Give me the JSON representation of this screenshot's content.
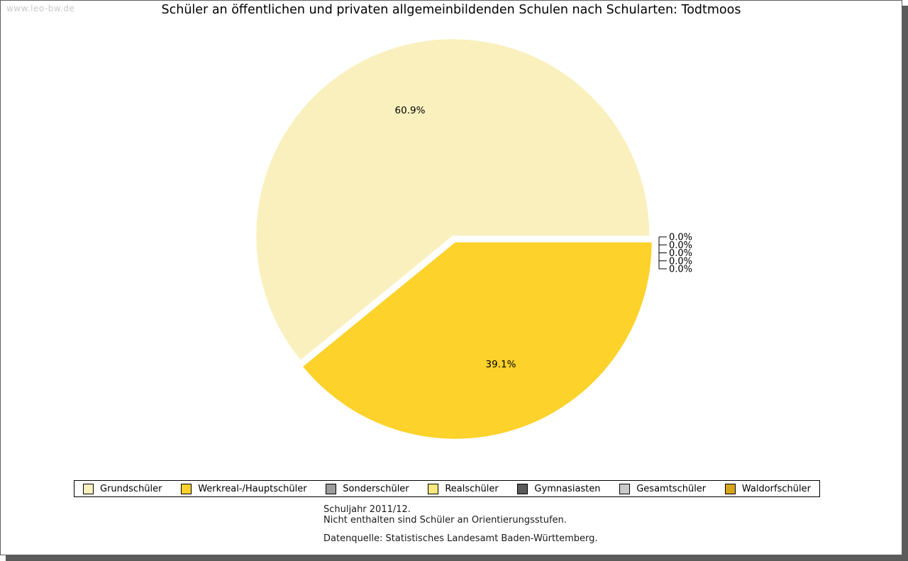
{
  "watermark": "www.leo-bw.de",
  "chart_data": {
    "type": "pie",
    "title": "Schüler an öffentlichen und privaten allgemeinbildenden Schulen nach Schularten: Todtmoos",
    "unit": "%",
    "legend_position": "bottom",
    "slices": [
      {
        "label": "Grundschüler",
        "value": 60.9,
        "color": "#FAF0BE"
      },
      {
        "label": "Werkreal-/Hauptschüler",
        "value": 39.1,
        "color": "#FCD22B"
      },
      {
        "label": "Sonderschüler",
        "value": 0.0,
        "color": "#9B9B9B"
      },
      {
        "label": "Realschüler",
        "value": 0.0,
        "color": "#FAE77E"
      },
      {
        "label": "Gymnasiasten",
        "value": 0.0,
        "color": "#5A5A5A"
      },
      {
        "label": "Gesamtschüler",
        "value": 0.0,
        "color": "#C9C9C9"
      },
      {
        "label": "Waldorfschüler",
        "value": 0.0,
        "color": "#D6A51C"
      }
    ],
    "value_labels": [
      "60.9%",
      "39.1%",
      "0.0%",
      "0.0%",
      "0.0%",
      "0.0%",
      "0.0%"
    ]
  },
  "footnotes": {
    "line1": "Schuljahr 2011/12.",
    "line2": "Nicht enthalten sind Schüler an Orientierungsstufen.",
    "source": "Datenquelle: Statistisches Landesamt Baden-Württemberg."
  }
}
